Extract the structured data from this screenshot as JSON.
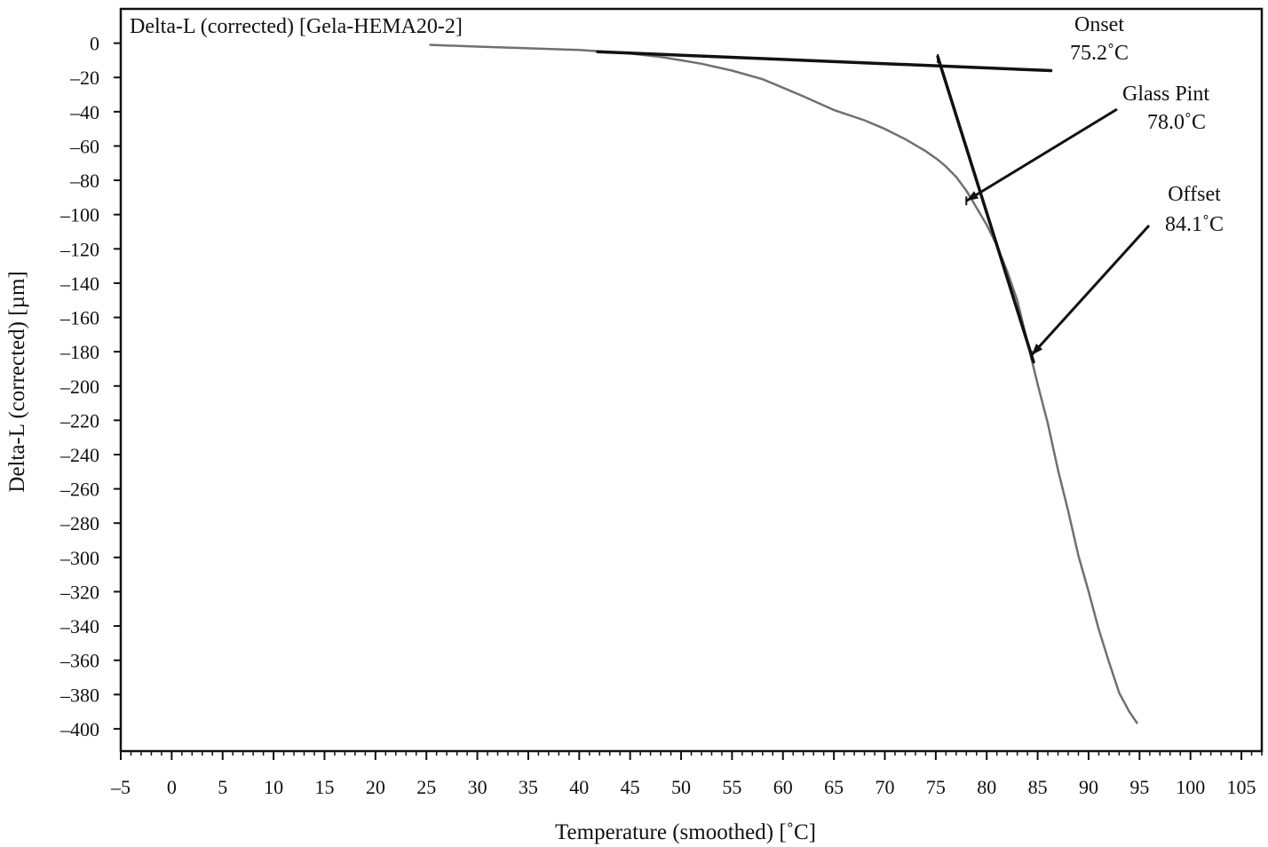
{
  "chart_data": {
    "type": "line",
    "title": "Delta-L (corrected) [Gela-HEMA20-2]",
    "xlabel": "Temperature (smoothed) [˚C]",
    "ylabel": "Delta-L (corrected)  [µm]",
    "xlim": [
      -5,
      107
    ],
    "ylim": [
      -413,
      20
    ],
    "x_ticks": [
      -5,
      0,
      5,
      10,
      15,
      20,
      25,
      30,
      35,
      40,
      45,
      50,
      55,
      60,
      65,
      70,
      75,
      80,
      85,
      90,
      95,
      100,
      105
    ],
    "x_tick_labels": [
      "–5",
      "0",
      "5",
      "10",
      "15",
      "20",
      "25",
      "30",
      "35",
      "40",
      "45",
      "50",
      "55",
      "60",
      "65",
      "70",
      "75",
      "80",
      "85",
      "90",
      "95",
      "100",
      "105"
    ],
    "y_ticks": [
      0,
      -20,
      -40,
      -60,
      -80,
      -100,
      -120,
      -140,
      -160,
      -180,
      -200,
      -220,
      -240,
      -260,
      -280,
      -300,
      -320,
      -340,
      -360,
      -380,
      -400
    ],
    "y_tick_labels": [
      "0",
      "–20",
      "–40",
      "–60",
      "–80",
      "–100",
      "–120",
      "–140",
      "–160",
      "–180",
      "–200",
      "–220",
      "–240",
      "–260",
      "–280",
      "–300",
      "–320",
      "–340",
      "–360",
      "–380",
      "–400"
    ],
    "grid": false,
    "series": [
      {
        "x": [
          25.3,
          30,
          35,
          40,
          45,
          48,
          50,
          52,
          55,
          58,
          60,
          62,
          65,
          68,
          70,
          72,
          74,
          75.2,
          76,
          77,
          78,
          79,
          80,
          81,
          82,
          83,
          84.1,
          85,
          86,
          87,
          88,
          89,
          90,
          91,
          92,
          93,
          94,
          94.8
        ],
        "y": [
          -1,
          -2,
          -3,
          -4,
          -6,
          -8,
          -10,
          -12,
          -16,
          -21,
          -26,
          -31,
          -39,
          -45,
          -50,
          -56,
          -63,
          -68,
          -72,
          -78,
          -86,
          -96,
          -106,
          -118,
          -133,
          -150,
          -177,
          -199,
          -222,
          -249,
          -273,
          -299,
          -320,
          -342,
          -361,
          -379,
          -390,
          -397
        ],
        "color": "#707070"
      }
    ],
    "tangent_lines": [
      {
        "x": [
          41.8,
          86.3
        ],
        "y": [
          -5,
          -16
        ],
        "color": "#111111"
      },
      {
        "x": [
          75.2,
          84.6
        ],
        "y": [
          -8,
          -186
        ],
        "color": "#111111"
      }
    ],
    "annotations": [
      {
        "lines": [
          "Onset",
          "75.2˚C"
        ],
        "x": 75.2,
        "y": -9
      },
      {
        "lines": [
          "Glass Pint",
          "78.0˚C"
        ],
        "x": 78.0,
        "y": -92
      },
      {
        "lines": [
          "Offset",
          "84.1˚C"
        ],
        "x": 84.4,
        "y": -182
      }
    ]
  }
}
